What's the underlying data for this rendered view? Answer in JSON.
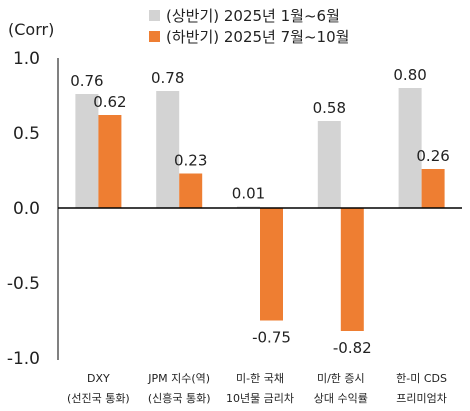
{
  "chart_data": {
    "type": "bar",
    "ylabel": "(Corr)",
    "ylim": [
      -1.0,
      1.0
    ],
    "yticks": [
      "1.0",
      "0.5",
      "0.0",
      "-0.5",
      "-1.0"
    ],
    "ytick_values": [
      1.0,
      0.5,
      0.0,
      -0.5,
      -1.0
    ],
    "legend_placement": "top",
    "categories": [
      [
        "DXY",
        "(선진국 통화)"
      ],
      [
        "JPM 지수(역)",
        "(신흥국 통화)"
      ],
      [
        "미-한 국채",
        "10년물 금리차"
      ],
      [
        "미/한 증시",
        "상대 수익률"
      ],
      [
        "한-미 CDS",
        "프리미엄차"
      ]
    ],
    "series": [
      {
        "name": "(상반기) 2025년 1월~6월",
        "color": "#d3d3d3",
        "values": [
          0.76,
          0.78,
          0.01,
          0.58,
          0.8
        ],
        "labels": [
          "0.76",
          "0.78",
          "0.01",
          "0.58",
          "0.80"
        ]
      },
      {
        "name": "(하반기) 2025년 7월~10월",
        "color": "#ee7e32",
        "values": [
          0.62,
          0.23,
          -0.75,
          -0.82,
          0.26
        ],
        "labels": [
          "0.62",
          "0.23",
          "-0.75",
          "-0.82",
          "0.26"
        ]
      }
    ]
  }
}
